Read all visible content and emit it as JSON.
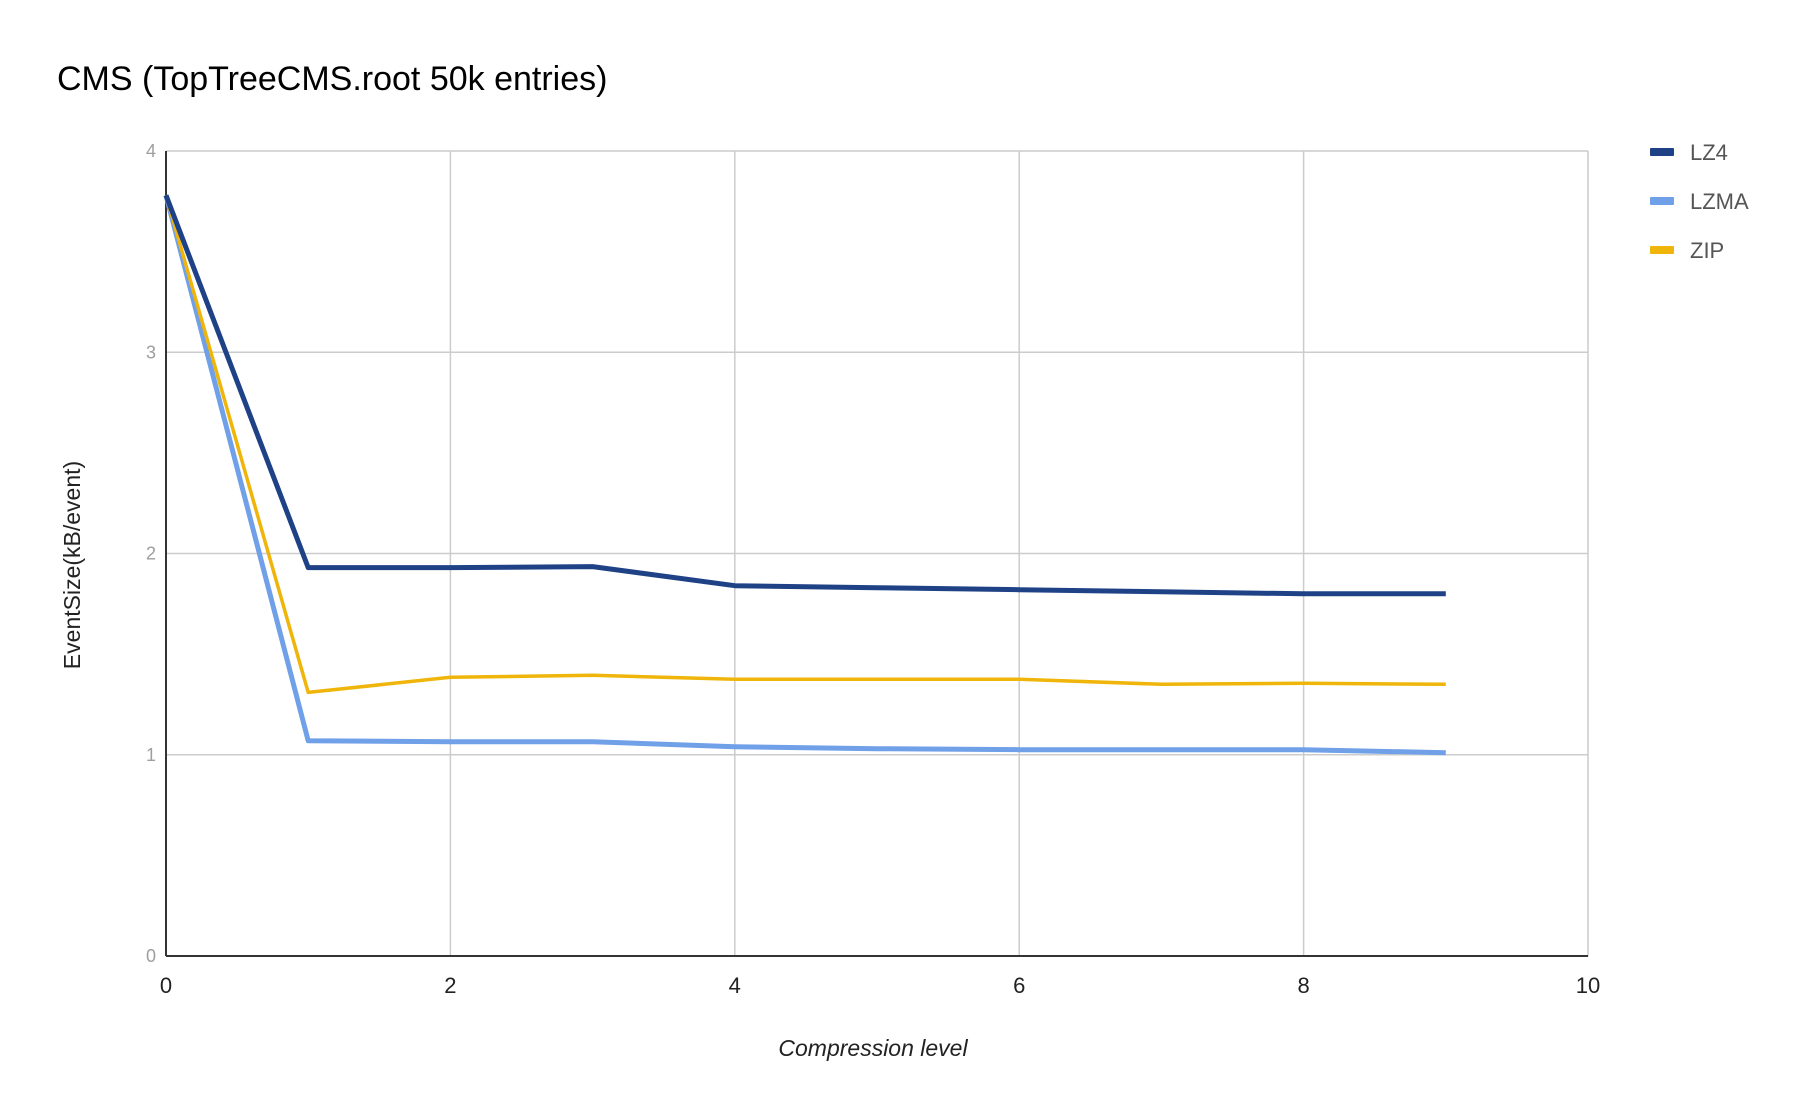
{
  "chart_data": {
    "type": "line",
    "title": "CMS (TopTreeCMS.root 50k entries)",
    "xlabel": "Compression level",
    "ylabel": "EventSize(kB/event)",
    "xlim": [
      0,
      10
    ],
    "ylim": [
      0,
      4
    ],
    "x_ticks": [
      "0",
      "2",
      "4",
      "6",
      "8",
      "10"
    ],
    "y_ticks": [
      "0",
      "1",
      "2",
      "3",
      "4"
    ],
    "grid": true,
    "legend_position": "right",
    "x": [
      0,
      1,
      2,
      3,
      4,
      5,
      6,
      7,
      8,
      9
    ],
    "series": [
      {
        "name": "LZ4",
        "color": "#1f4287",
        "values": [
          3.78,
          1.93,
          1.93,
          1.935,
          1.84,
          1.83,
          1.82,
          1.81,
          1.8,
          1.8
        ]
      },
      {
        "name": "LZMA",
        "color": "#6fa0e8",
        "values": [
          3.78,
          1.07,
          1.065,
          1.065,
          1.04,
          1.03,
          1.025,
          1.025,
          1.025,
          1.01
        ]
      },
      {
        "name": "ZIP",
        "color": "#f0b50a",
        "values": [
          3.78,
          1.31,
          1.385,
          1.395,
          1.375,
          1.375,
          1.375,
          1.35,
          1.355,
          1.35
        ]
      }
    ]
  }
}
